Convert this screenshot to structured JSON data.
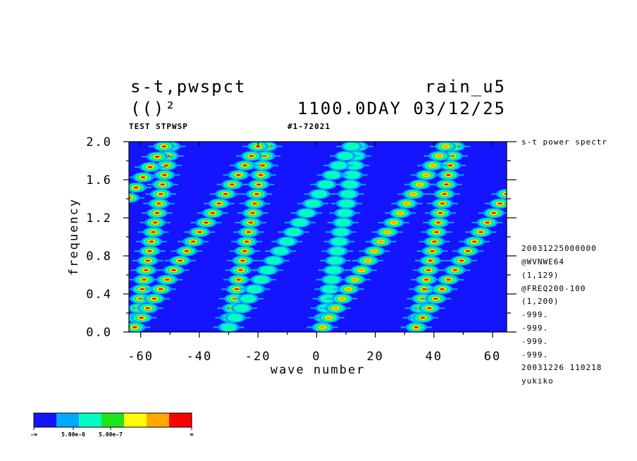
{
  "chart_data": {
    "type": "contour",
    "title": "s-t,pwspct",
    "title_right": "rain_u5",
    "subtitle": "(()²",
    "subtitle_right": "1100.0DAY 03/12/25",
    "annotations": [
      "TEST STPWSP",
      "#1-72021"
    ],
    "side_text": [
      "s-t power spectr",
      "20031225000000",
      "@WVNWE64",
      "(1,129)",
      "@FREQ200-100",
      "(1,200)",
      "-999.",
      "-999.",
      "-999.",
      "-999.",
      "20031226 110218",
      "yukiko"
    ],
    "xlabel": "wave number",
    "ylabel": "frequency",
    "xlim": [
      -64,
      64.8
    ],
    "xticks": [
      -60,
      -40,
      -20,
      0,
      20,
      40,
      60
    ],
    "xminorticks": [
      -50,
      -30,
      -10,
      10,
      30,
      50
    ],
    "ylim": [
      0,
      2
    ],
    "yticks": [
      {
        "value": 0,
        "label": "0.0"
      },
      0.4,
      0.8,
      1.2,
      1.6,
      {
        "value": 2,
        "label": "2.0"
      }
    ],
    "yminorticks": [
      0.2,
      0.6,
      1.0,
      1.4,
      1.8
    ],
    "colorbar": {
      "colors": [
        "#1414ff",
        "#00a8ff",
        "#00ffc0",
        "#1ee61e",
        "#ffff00",
        "#ffa800",
        "#ff0000"
      ],
      "labels": [
        "-∞",
        "5.00e-8",
        "5.00e-7",
        "∞"
      ]
    },
    "ridges": [
      {
        "x": [
          -62,
          -50
        ],
        "y": [
          0.05,
          1.95
        ],
        "level": 6
      },
      {
        "x": [
          -30,
          -17
        ],
        "y": [
          0.05,
          1.95
        ],
        "level": 6
      },
      {
        "x": [
          2,
          14
        ],
        "y": [
          0.05,
          1.95
        ],
        "level": 2
      },
      {
        "x": [
          34,
          47
        ],
        "y": [
          0.05,
          1.95
        ],
        "level": 6
      },
      {
        "x": [
          -62,
          -20
        ],
        "y": [
          0.05,
          1.95
        ],
        "level": 6
      },
      {
        "x": [
          -30,
          12
        ],
        "y": [
          0.05,
          1.95
        ],
        "level": 2
      },
      {
        "x": [
          2,
          44
        ],
        "y": [
          0.05,
          1.95
        ],
        "level": 5
      },
      {
        "x": [
          34,
          64.8
        ],
        "y": [
          0.05,
          1.45
        ],
        "level": 6
      },
      {
        "x": [
          -64,
          -52
        ],
        "y": [
          1.41,
          1.95
        ],
        "level": 6
      }
    ]
  }
}
